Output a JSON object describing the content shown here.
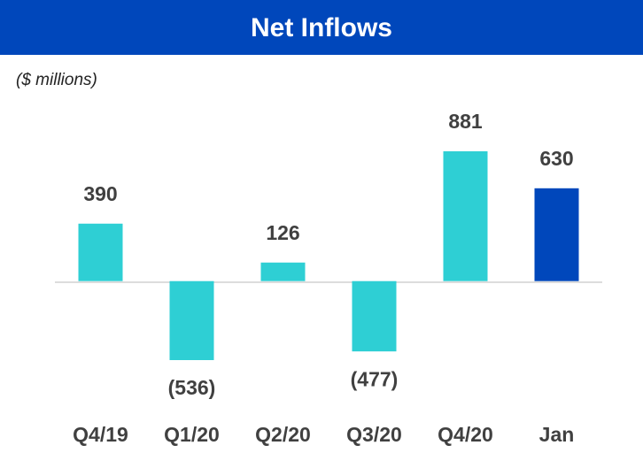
{
  "chart_data": {
    "type": "bar",
    "title": "Net Inflows",
    "subtitle": "($ millions)",
    "categories": [
      "Q4/19",
      "Q1/20",
      "Q2/20",
      "Q3/20",
      "Q4/20",
      "Jan"
    ],
    "values": [
      390,
      -536,
      126,
      -477,
      881,
      630
    ],
    "value_labels": [
      "390",
      "(536)",
      "126",
      "(477)",
      "881",
      "630"
    ],
    "colors": [
      "#2ecfd4",
      "#2ecfd4",
      "#2ecfd4",
      "#2ecfd4",
      "#2ecfd4",
      "#0047bb"
    ]
  }
}
